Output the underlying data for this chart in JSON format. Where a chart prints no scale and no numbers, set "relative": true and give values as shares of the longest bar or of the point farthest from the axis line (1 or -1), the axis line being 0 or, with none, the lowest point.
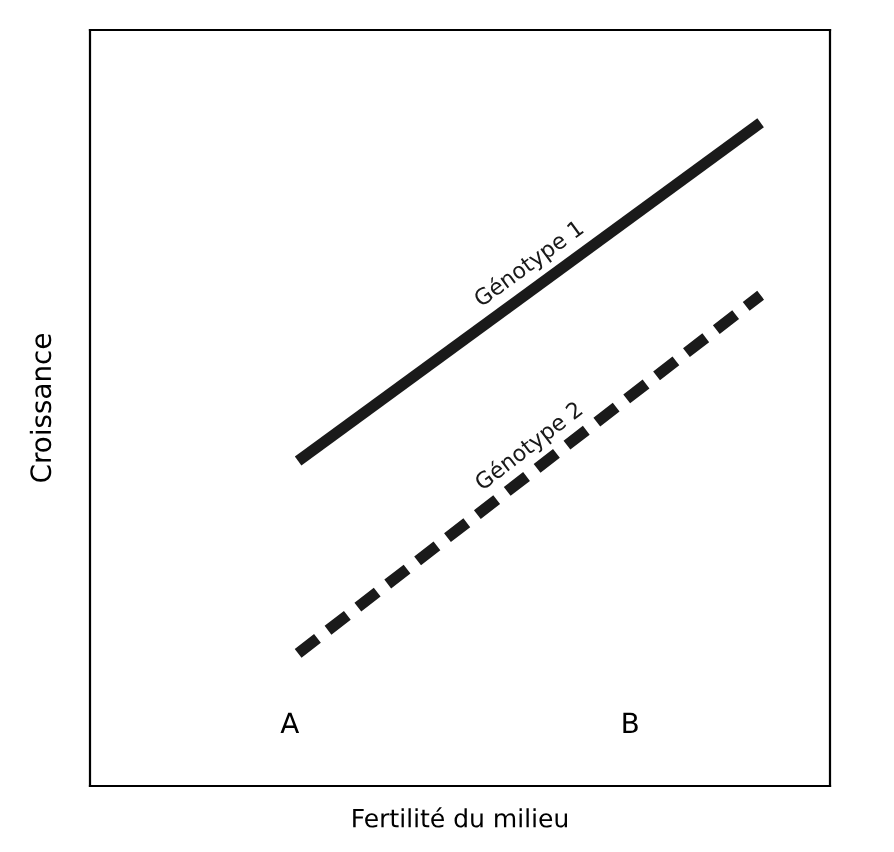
{
  "chart_data": {
    "type": "line",
    "relative": true,
    "xlabel": "Fertilité du milieu",
    "ylabel": "Croissance",
    "categories": [
      null,
      null
    ],
    "series": [
      {
        "name": "Génotype 1",
        "color": "#1a1a1a",
        "values": [
          0.49,
          1.0
        ],
        "line_style": "solid"
      },
      {
        "name": "Génotype 2",
        "color": "#1a1a1a",
        "values": [
          0.2,
          0.74
        ],
        "line_style": "dashed"
      }
    ],
    "annotations": [
      "A",
      "B"
    ],
    "marker": "none"
  }
}
